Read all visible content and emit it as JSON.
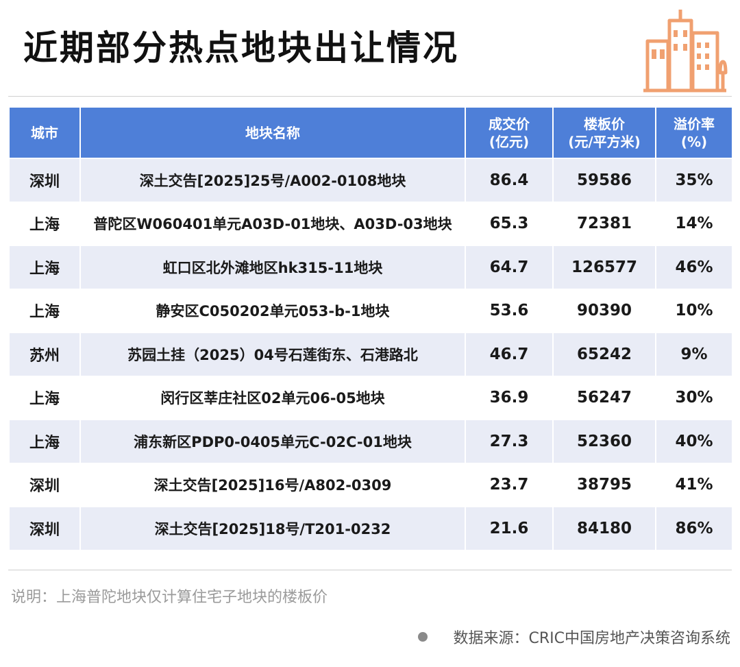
{
  "title": "近期部分热点地块出让情况",
  "colors": {
    "header": "#4e7fd8",
    "band": "#e9ecf6",
    "logo": "#f0a070"
  },
  "icons": {
    "logo": "buildings-icon",
    "bullet": "dot-icon"
  },
  "chart_data": {
    "type": "table",
    "headers": [
      [
        "城市"
      ],
      [
        "地块名称"
      ],
      [
        "成交价",
        "(亿元)"
      ],
      [
        "楼板价",
        "(元/平方米)"
      ],
      [
        "溢价率",
        "(%)"
      ]
    ],
    "rows": [
      [
        "深圳",
        "深土交告[2025]25号/A002-0108地块",
        "86.4",
        "59586",
        "35%"
      ],
      [
        "上海",
        "普陀区W060401单元A03D-01地块、A03D-03地块",
        "65.3",
        "72381",
        "14%"
      ],
      [
        "上海",
        "虹口区北外滩地区hk315-11地块",
        "64.7",
        "126577",
        "46%"
      ],
      [
        "上海",
        "静安区C050202单元053-b-1地块",
        "53.6",
        "90390",
        "10%"
      ],
      [
        "苏州",
        "苏园土挂（2025）04号石莲街东、石港路北",
        "46.7",
        "65242",
        "9%"
      ],
      [
        "上海",
        "闵行区莘庄社区02单元06-05地块",
        "36.9",
        "56247",
        "30%"
      ],
      [
        "上海",
        "浦东新区PDP0-0405单元C-02C-01地块",
        "27.3",
        "52360",
        "40%"
      ],
      [
        "深圳",
        "深土交告[2025]16号/A802-0309",
        "23.7",
        "38795",
        "41%"
      ],
      [
        "深圳",
        "深土交告[2025]18号/T201-0232",
        "21.6",
        "84180",
        "86%"
      ]
    ]
  },
  "note": "说明：上海普陀地块仅计算住宅子地块的楼板价",
  "source": "数据来源：CRIC中国房地产决策咨询系统"
}
